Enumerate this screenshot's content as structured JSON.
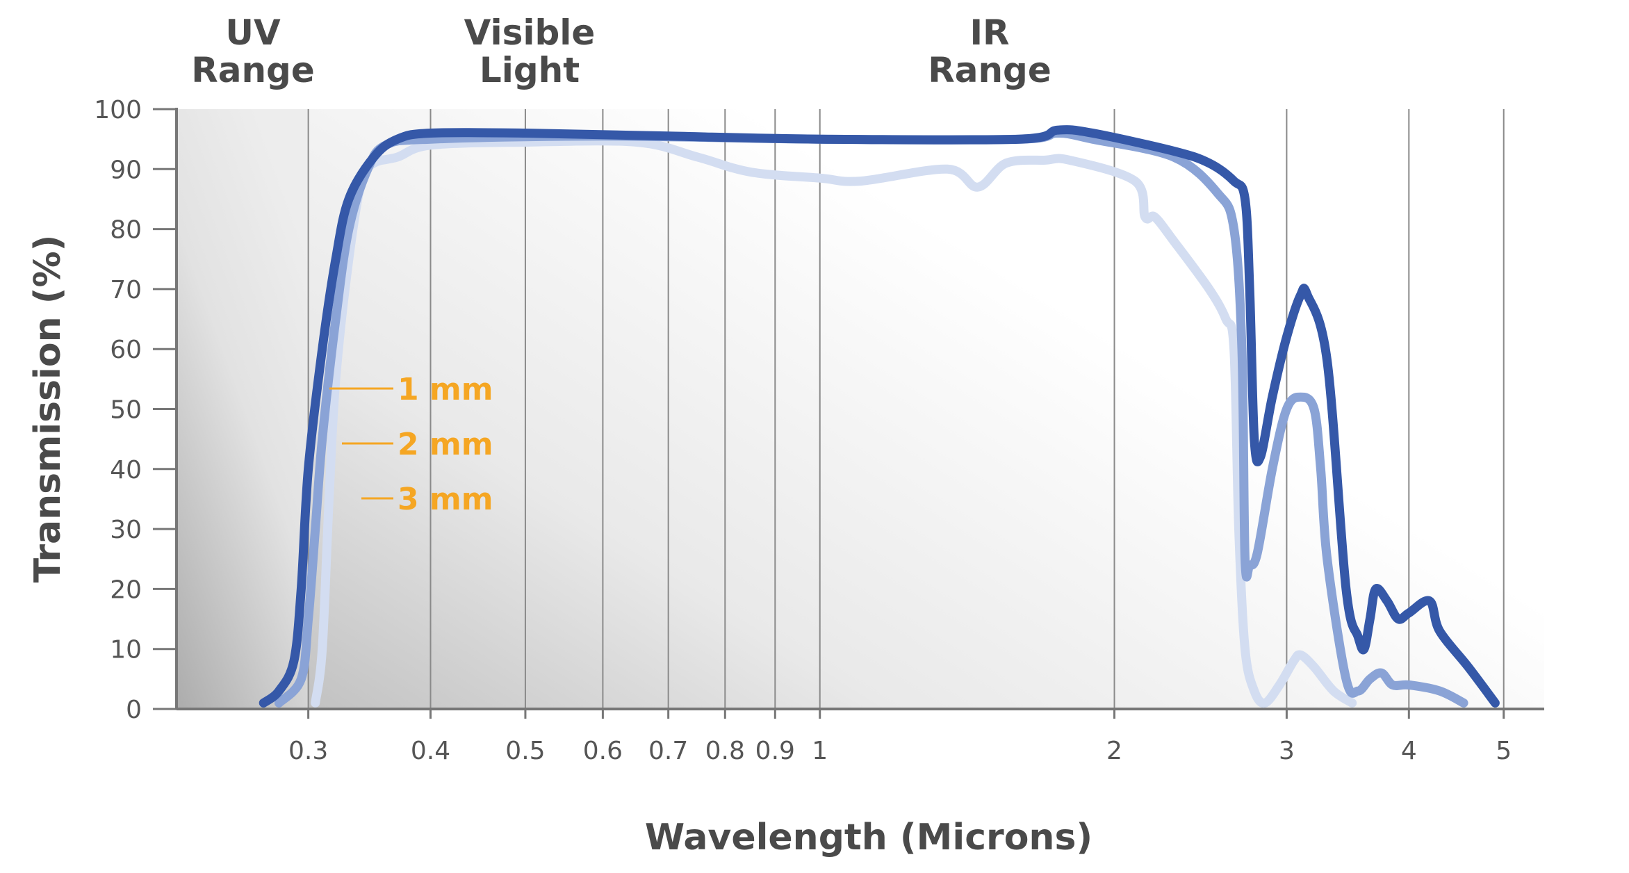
{
  "chart_data": {
    "type": "line",
    "xlabel": "Wavelength (Microns)",
    "ylabel": "Transmission (%)",
    "x_scale": "log",
    "xlim": [
      0.22,
      5.5
    ],
    "ylim": [
      0,
      100
    ],
    "x_ticks": [
      0.3,
      0.4,
      0.5,
      0.6,
      0.7,
      0.8,
      0.9,
      1,
      2,
      3,
      4,
      5
    ],
    "x_tick_labels": [
      "0.3",
      "0.4",
      "0.5",
      "0.6",
      "0.7",
      "0.8",
      "0.9",
      "1",
      "2",
      "3",
      "4",
      "5"
    ],
    "y_ticks": [
      0,
      10,
      20,
      30,
      40,
      50,
      60,
      70,
      80,
      90,
      100
    ],
    "y_tick_labels": [
      "0",
      "10",
      "20",
      "30",
      "40",
      "50",
      "60",
      "70",
      "80",
      "90",
      "100"
    ],
    "grid": "vertical lines at x ticks",
    "regions": [
      {
        "label_line1": "UV",
        "label_line2": "Range"
      },
      {
        "label_line1": "Visible",
        "label_line2": "Light"
      },
      {
        "label_line1": "IR",
        "label_line2": "Range"
      }
    ],
    "label_color": "#f5a623",
    "series": [
      {
        "name": "1 mm",
        "color": "#3558a8",
        "points": [
          [
            0.27,
            1
          ],
          [
            0.28,
            3
          ],
          [
            0.29,
            8
          ],
          [
            0.295,
            20
          ],
          [
            0.3,
            40
          ],
          [
            0.31,
            60
          ],
          [
            0.32,
            75
          ],
          [
            0.33,
            85
          ],
          [
            0.35,
            92
          ],
          [
            0.37,
            95
          ],
          [
            0.4,
            96
          ],
          [
            0.5,
            96
          ],
          [
            0.7,
            95.5
          ],
          [
            1.0,
            95
          ],
          [
            1.6,
            95
          ],
          [
            1.75,
            96.5
          ],
          [
            1.9,
            96
          ],
          [
            2.3,
            93
          ],
          [
            2.5,
            91
          ],
          [
            2.65,
            88
          ],
          [
            2.72,
            85
          ],
          [
            2.75,
            70
          ],
          [
            2.78,
            45
          ],
          [
            2.82,
            42
          ],
          [
            2.9,
            52
          ],
          [
            3.0,
            62
          ],
          [
            3.1,
            69
          ],
          [
            3.15,
            69
          ],
          [
            3.3,
            58
          ],
          [
            3.45,
            20
          ],
          [
            3.55,
            12
          ],
          [
            3.6,
            10
          ],
          [
            3.65,
            15
          ],
          [
            3.7,
            20
          ],
          [
            3.8,
            18
          ],
          [
            3.9,
            15
          ],
          [
            4.0,
            16
          ],
          [
            4.2,
            18
          ],
          [
            4.3,
            13
          ],
          [
            4.6,
            7
          ],
          [
            4.9,
            1
          ]
        ]
      },
      {
        "name": "2 mm",
        "color": "#8aa3d6",
        "points": [
          [
            0.28,
            1
          ],
          [
            0.295,
            5
          ],
          [
            0.3,
            15
          ],
          [
            0.305,
            30
          ],
          [
            0.31,
            45
          ],
          [
            0.32,
            65
          ],
          [
            0.33,
            80
          ],
          [
            0.345,
            90
          ],
          [
            0.36,
            94
          ],
          [
            0.4,
            95
          ],
          [
            0.6,
            95.5
          ],
          [
            1.0,
            95
          ],
          [
            1.6,
            95
          ],
          [
            1.75,
            96
          ],
          [
            1.9,
            95
          ],
          [
            2.3,
            92
          ],
          [
            2.55,
            86
          ],
          [
            2.65,
            80
          ],
          [
            2.7,
            60
          ],
          [
            2.72,
            25
          ],
          [
            2.75,
            24
          ],
          [
            2.8,
            26
          ],
          [
            2.9,
            40
          ],
          [
            3.0,
            50
          ],
          [
            3.1,
            52
          ],
          [
            3.2,
            50
          ],
          [
            3.25,
            40
          ],
          [
            3.3,
            25
          ],
          [
            3.45,
            5
          ],
          [
            3.55,
            3
          ],
          [
            3.65,
            5
          ],
          [
            3.75,
            6
          ],
          [
            3.85,
            4
          ],
          [
            4.0,
            4
          ],
          [
            4.3,
            3
          ],
          [
            4.55,
            1
          ]
        ]
      },
      {
        "name": "3 mm",
        "color": "#d3ddf1",
        "points": [
          [
            0.305,
            1
          ],
          [
            0.31,
            10
          ],
          [
            0.315,
            35
          ],
          [
            0.32,
            55
          ],
          [
            0.33,
            75
          ],
          [
            0.34,
            88
          ],
          [
            0.35,
            91
          ],
          [
            0.37,
            92
          ],
          [
            0.4,
            94
          ],
          [
            0.5,
            94.5
          ],
          [
            0.65,
            94.5
          ],
          [
            0.75,
            92
          ],
          [
            0.85,
            89.5
          ],
          [
            1.0,
            88.5
          ],
          [
            1.1,
            88
          ],
          [
            1.35,
            90
          ],
          [
            1.45,
            87
          ],
          [
            1.55,
            91
          ],
          [
            1.7,
            91.5
          ],
          [
            1.8,
            91.5
          ],
          [
            2.1,
            88
          ],
          [
            2.15,
            82
          ],
          [
            2.2,
            82
          ],
          [
            2.3,
            78
          ],
          [
            2.5,
            70
          ],
          [
            2.6,
            65
          ],
          [
            2.65,
            60
          ],
          [
            2.68,
            30
          ],
          [
            2.72,
            10
          ],
          [
            2.78,
            3
          ],
          [
            2.85,
            1
          ],
          [
            2.95,
            4
          ],
          [
            3.05,
            8
          ],
          [
            3.1,
            9
          ],
          [
            3.2,
            7
          ],
          [
            3.35,
            3
          ],
          [
            3.5,
            1
          ]
        ]
      }
    ]
  }
}
